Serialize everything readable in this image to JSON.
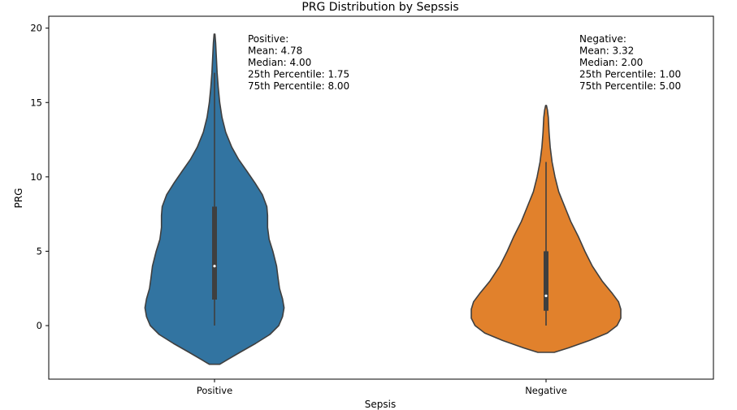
{
  "chart_data": {
    "type": "violin",
    "title": "PRG Distribution by Sepssis",
    "xlabel": "Sepsis",
    "ylabel": "PRG",
    "ylim": [
      -3.6,
      20.8
    ],
    "yticks": [
      0,
      5,
      10,
      15,
      20
    ],
    "ytick_labels": [
      "0",
      "5",
      "10",
      "15",
      "20"
    ],
    "grid": false,
    "categories": [
      "Positive",
      "Negative"
    ],
    "series": [
      {
        "category": "Positive",
        "color": "#3274a1",
        "summary": {
          "mean": 4.78,
          "median": 4.0,
          "q1": 1.75,
          "q3": 8.0,
          "whisker_low": 0,
          "whisker_high": 17.0
        },
        "density_profile": [
          [
            -2.6,
            0.07
          ],
          [
            -2.3,
            0.17
          ],
          [
            -1.8,
            0.34
          ],
          [
            -1.2,
            0.55
          ],
          [
            -0.6,
            0.74
          ],
          [
            0.0,
            0.86
          ],
          [
            0.6,
            0.91
          ],
          [
            1.2,
            0.93
          ],
          [
            1.8,
            0.91
          ],
          [
            2.5,
            0.87
          ],
          [
            3.2,
            0.85
          ],
          [
            4.0,
            0.83
          ],
          [
            5.0,
            0.78
          ],
          [
            5.8,
            0.73
          ],
          [
            6.6,
            0.71
          ],
          [
            7.4,
            0.71
          ],
          [
            8.0,
            0.7
          ],
          [
            8.8,
            0.64
          ],
          [
            9.6,
            0.54
          ],
          [
            10.4,
            0.43
          ],
          [
            11.2,
            0.32
          ],
          [
            12.0,
            0.23
          ],
          [
            13.0,
            0.15
          ],
          [
            14.0,
            0.1
          ],
          [
            15.0,
            0.07
          ],
          [
            16.0,
            0.05
          ],
          [
            17.0,
            0.035
          ],
          [
            18.0,
            0.025
          ],
          [
            19.0,
            0.015
          ],
          [
            19.6,
            0.005
          ]
        ],
        "annotation": [
          "Positive:",
          "Mean: 4.78",
          "Median: 4.00",
          "25th Percentile: 1.75",
          "75th Percentile: 8.00"
        ]
      },
      {
        "category": "Negative",
        "color": "#e1812c",
        "summary": {
          "mean": 3.32,
          "median": 2.0,
          "q1": 1.0,
          "q3": 5.0,
          "whisker_low": 0,
          "whisker_high": 11.0
        },
        "density_profile": [
          [
            -1.8,
            0.11
          ],
          [
            -1.5,
            0.3
          ],
          [
            -1.0,
            0.58
          ],
          [
            -0.5,
            0.82
          ],
          [
            0.0,
            0.95
          ],
          [
            0.5,
            1.0
          ],
          [
            1.1,
            1.0
          ],
          [
            1.6,
            0.97
          ],
          [
            2.2,
            0.88
          ],
          [
            3.0,
            0.75
          ],
          [
            4.0,
            0.62
          ],
          [
            5.0,
            0.52
          ],
          [
            6.0,
            0.43
          ],
          [
            7.0,
            0.33
          ],
          [
            8.0,
            0.25
          ],
          [
            9.0,
            0.17
          ],
          [
            10.0,
            0.12
          ],
          [
            11.0,
            0.08
          ],
          [
            12.0,
            0.055
          ],
          [
            13.0,
            0.04
          ],
          [
            14.0,
            0.03
          ],
          [
            14.5,
            0.018
          ],
          [
            14.8,
            0.005
          ]
        ],
        "annotation": [
          "Negative:",
          "Mean: 3.32",
          "Median: 2.00",
          "25th Percentile: 1.00",
          "75th Percentile: 5.00"
        ]
      }
    ]
  }
}
